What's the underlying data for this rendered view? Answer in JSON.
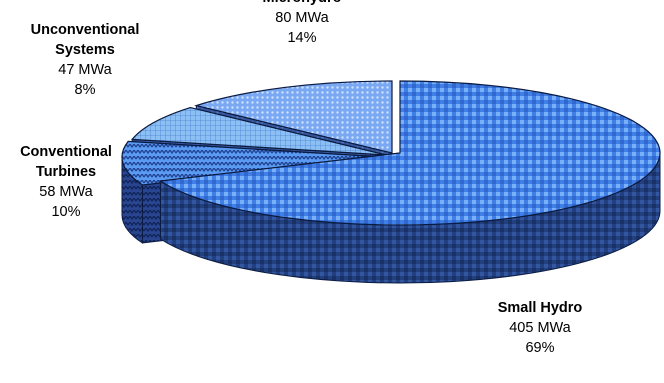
{
  "chart_data": {
    "type": "pie",
    "style": "3d-exploded",
    "slices": [
      {
        "name": "Small Hydro",
        "value": 405,
        "value_label": "405 MWa",
        "percent_label": "69%",
        "label_lines": [
          "Small Hydro"
        ],
        "color": "#3f7fe8",
        "side_color": "#243f80",
        "pattern": "plaid"
      },
      {
        "name": "Conventional Turbines",
        "value": 58,
        "value_label": "58 MWa",
        "percent_label": "10%",
        "label_lines": [
          "Conventional",
          "Turbines"
        ],
        "color": "#5a9af0",
        "side_color": "#2a4590",
        "pattern": "zigzag"
      },
      {
        "name": "Unconventional Systems",
        "value": 47,
        "value_label": "47 MWa",
        "percent_label": "8%",
        "label_lines": [
          "Unconventional",
          "Systems"
        ],
        "color": "#8cc0f5",
        "side_color": "#3a5aa0",
        "pattern": "grid"
      },
      {
        "name": "Microhydro",
        "value": 80,
        "value_label": "80 MWa",
        "percent_label": "14%",
        "label_lines": [
          "Microhydro"
        ],
        "color": "#7aa8f2",
        "side_color": "#34559a",
        "pattern": "dots"
      }
    ],
    "unit": "MWa",
    "legend": "none",
    "data_labels": "outside"
  }
}
